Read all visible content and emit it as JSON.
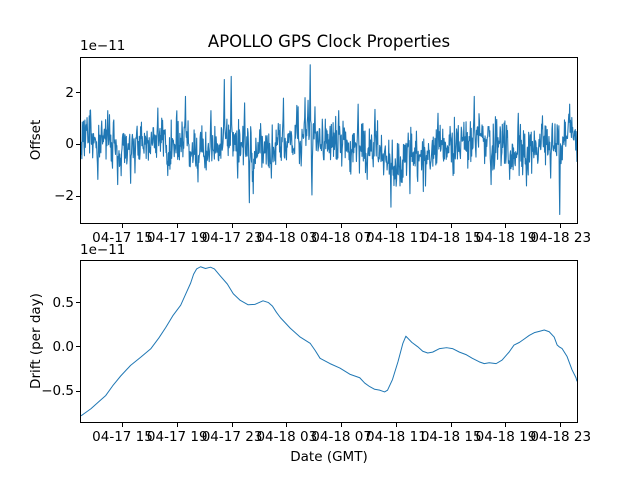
{
  "figure": {
    "title": "APOLLO GPS Clock Properties",
    "background": "#ffffff",
    "line_color": "#1f77b4",
    "axes_color": "#000000"
  },
  "chart_data": [
    {
      "id": "offset",
      "type": "line",
      "ylabel": "Offset",
      "y_scale_label": "1e−11",
      "ylim": [
        -3.03,
        3.33
      ],
      "grid": false,
      "legend": "none",
      "yticks": [
        {
          "v": 2,
          "label": "2"
        },
        {
          "v": 0,
          "label": "0"
        },
        {
          "v": -2,
          "label": "−2"
        }
      ],
      "xticks": [
        {
          "f": 0.0837,
          "label": "04-17 15"
        },
        {
          "f": 0.1941,
          "label": "04-17 19"
        },
        {
          "f": 0.3046,
          "label": "04-17 23"
        },
        {
          "f": 0.415,
          "label": "04-18 03"
        },
        {
          "f": 0.5255,
          "label": "04-18 07"
        },
        {
          "f": 0.6359,
          "label": "04-18 11"
        },
        {
          "f": 0.7464,
          "label": "04-18 15"
        },
        {
          "f": 0.8568,
          "label": "04-18 19"
        },
        {
          "f": 0.9673,
          "label": "04-18 23"
        }
      ],
      "series": {
        "name": "clock offset noise",
        "kind": "generated-noise",
        "n": 1150,
        "seed": 3,
        "std": 0.46,
        "clip": [
          -2.72,
          3.08
        ],
        "meander": [
          [
            0.16,
            40,
            1.0
          ],
          [
            0.09,
            17,
            0.3
          ]
        ],
        "dips": [
          [
            0.28,
            0.315,
            0.3
          ],
          [
            0.325,
            0.375,
            -0.45
          ],
          [
            0.44,
            0.475,
            0.35
          ],
          [
            0.6,
            0.665,
            -0.85
          ],
          [
            0.665,
            0.705,
            -0.35
          ],
          [
            0.855,
            0.91,
            -0.3
          ],
          [
            0.972,
            1.0,
            0.5
          ]
        ],
        "spikes": [
          [
            0.034,
            -1.35
          ],
          [
            0.054,
            1.3
          ],
          [
            0.074,
            -1.55
          ],
          [
            0.1,
            -1.5
          ],
          [
            0.155,
            1.4
          ],
          [
            0.175,
            -1.2
          ],
          [
            0.211,
            1.85
          ],
          [
            0.236,
            -1.45
          ],
          [
            0.262,
            1.3
          ],
          [
            0.289,
            2.5
          ],
          [
            0.303,
            2.62
          ],
          [
            0.316,
            -1.3
          ],
          [
            0.33,
            1.6
          ],
          [
            0.339,
            -2.25
          ],
          [
            0.347,
            -1.9
          ],
          [
            0.3835,
            -1.3
          ],
          [
            0.408,
            1.78
          ],
          [
            0.435,
            1.5
          ],
          [
            0.452,
            1.8
          ],
          [
            0.462,
            3.07
          ],
          [
            0.466,
            -1.95
          ],
          [
            0.472,
            1.45
          ],
          [
            0.52,
            1.3
          ],
          [
            0.559,
            1.55
          ],
          [
            0.577,
            -1.35
          ],
          [
            0.593,
            1.35
          ],
          [
            0.625,
            -2.42
          ],
          [
            0.643,
            -1.6
          ],
          [
            0.663,
            -1.9
          ],
          [
            0.72,
            1.2
          ],
          [
            0.75,
            -1.2
          ],
          [
            0.793,
            1.85
          ],
          [
            0.827,
            -1.55
          ],
          [
            0.864,
            -1.35
          ],
          [
            0.882,
            1.2
          ],
          [
            0.898,
            -1.6
          ],
          [
            0.93,
            1.1
          ],
          [
            0.947,
            -1.3
          ],
          [
            0.965,
            -2.7
          ],
          [
            0.985,
            1.55
          ]
        ]
      }
    },
    {
      "id": "drift",
      "type": "line",
      "ylabel": "Drift (per day)",
      "xlabel": "Date (GMT)",
      "y_scale_label": "1e−11",
      "ylim": [
        -0.85,
        0.97
      ],
      "grid": false,
      "legend": "none",
      "yticks": [
        {
          "v": 0.5,
          "label": "0.5"
        },
        {
          "v": 0.0,
          "label": "0.0"
        },
        {
          "v": -0.5,
          "label": "−0.5"
        }
      ],
      "xticks": [
        {
          "f": 0.0837,
          "label": "04-17 15"
        },
        {
          "f": 0.1941,
          "label": "04-17 19"
        },
        {
          "f": 0.3046,
          "label": "04-17 23"
        },
        {
          "f": 0.415,
          "label": "04-18 03"
        },
        {
          "f": 0.5255,
          "label": "04-18 07"
        },
        {
          "f": 0.6359,
          "label": "04-18 11"
        },
        {
          "f": 0.7464,
          "label": "04-18 15"
        },
        {
          "f": 0.8568,
          "label": "04-18 19"
        },
        {
          "f": 0.9673,
          "label": "04-18 23"
        }
      ],
      "series": {
        "name": "clock drift",
        "kind": "points",
        "points": [
          [
            0.0,
            -0.78
          ],
          [
            0.02,
            -0.7
          ],
          [
            0.036,
            -0.62
          ],
          [
            0.05,
            -0.55
          ],
          [
            0.064,
            -0.44
          ],
          [
            0.08,
            -0.33
          ],
          [
            0.1,
            -0.21
          ],
          [
            0.12,
            -0.12
          ],
          [
            0.141,
            -0.02
          ],
          [
            0.157,
            0.1
          ],
          [
            0.171,
            0.22
          ],
          [
            0.185,
            0.35
          ],
          [
            0.201,
            0.47
          ],
          [
            0.213,
            0.62
          ],
          [
            0.221,
            0.72
          ],
          [
            0.227,
            0.82
          ],
          [
            0.233,
            0.88
          ],
          [
            0.241,
            0.905
          ],
          [
            0.251,
            0.885
          ],
          [
            0.261,
            0.9
          ],
          [
            0.269,
            0.88
          ],
          [
            0.281,
            0.8
          ],
          [
            0.295,
            0.71
          ],
          [
            0.307,
            0.6
          ],
          [
            0.321,
            0.525
          ],
          [
            0.337,
            0.475
          ],
          [
            0.351,
            0.48
          ],
          [
            0.367,
            0.52
          ],
          [
            0.378,
            0.5
          ],
          [
            0.386,
            0.46
          ],
          [
            0.394,
            0.39
          ],
          [
            0.402,
            0.33
          ],
          [
            0.422,
            0.21
          ],
          [
            0.442,
            0.11
          ],
          [
            0.462,
            0.04
          ],
          [
            0.472,
            -0.04
          ],
          [
            0.482,
            -0.13
          ],
          [
            0.502,
            -0.19
          ],
          [
            0.522,
            -0.24
          ],
          [
            0.542,
            -0.31
          ],
          [
            0.552,
            -0.33
          ],
          [
            0.562,
            -0.35
          ],
          [
            0.572,
            -0.41
          ],
          [
            0.582,
            -0.45
          ],
          [
            0.592,
            -0.48
          ],
          [
            0.602,
            -0.49
          ],
          [
            0.612,
            -0.51
          ],
          [
            0.618,
            -0.49
          ],
          [
            0.628,
            -0.37
          ],
          [
            0.639,
            -0.17
          ],
          [
            0.649,
            0.04
          ],
          [
            0.655,
            0.12
          ],
          [
            0.667,
            0.05
          ],
          [
            0.679,
            0.0
          ],
          [
            0.689,
            -0.05
          ],
          [
            0.699,
            -0.07
          ],
          [
            0.709,
            -0.06
          ],
          [
            0.723,
            -0.02
          ],
          [
            0.737,
            -0.01
          ],
          [
            0.749,
            -0.02
          ],
          [
            0.763,
            -0.06
          ],
          [
            0.777,
            -0.09
          ],
          [
            0.789,
            -0.13
          ],
          [
            0.803,
            -0.17
          ],
          [
            0.813,
            -0.19
          ],
          [
            0.823,
            -0.18
          ],
          [
            0.837,
            -0.19
          ],
          [
            0.849,
            -0.15
          ],
          [
            0.863,
            -0.06
          ],
          [
            0.873,
            0.02
          ],
          [
            0.884,
            0.05
          ],
          [
            0.894,
            0.09
          ],
          [
            0.904,
            0.13
          ],
          [
            0.914,
            0.16
          ],
          [
            0.924,
            0.175
          ],
          [
            0.934,
            0.19
          ],
          [
            0.944,
            0.17
          ],
          [
            0.954,
            0.11
          ],
          [
            0.96,
            0.02
          ],
          [
            0.964,
            0.0
          ],
          [
            0.97,
            -0.02
          ],
          [
            0.98,
            -0.11
          ],
          [
            0.99,
            -0.26
          ],
          [
            0.998,
            -0.35
          ],
          [
            1.0,
            -0.39
          ]
        ]
      }
    }
  ]
}
